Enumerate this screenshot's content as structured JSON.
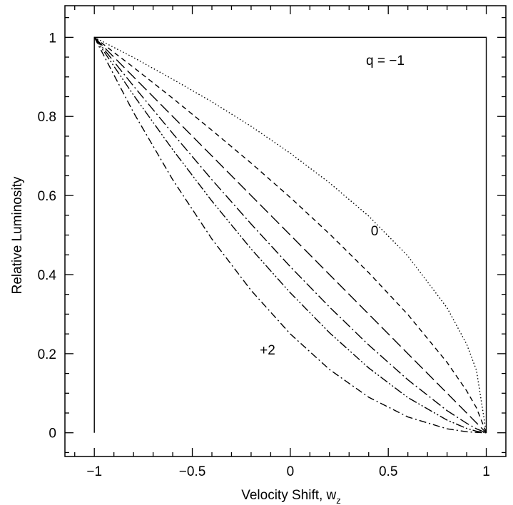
{
  "chart_data": {
    "type": "line",
    "xlabel": "Velocity Shift, w",
    "xlabel_sub": "z",
    "ylabel": "Relative Luminosity",
    "annotations": [
      "q = −1",
      "0",
      "+2"
    ],
    "xlim": [
      -1.15,
      1.1
    ],
    "ylim": [
      -0.06,
      1.08
    ],
    "xticks": [
      {
        "value": -1,
        "label": "−1"
      },
      {
        "value": -0.5,
        "label": "−0.5"
      },
      0,
      0.5,
      1
    ],
    "yticks": [
      0,
      0.2,
      0.4,
      0.6,
      0.8,
      1
    ],
    "xminorticks": [
      -1.1,
      -0.9,
      -0.8,
      -0.7,
      -0.6,
      -0.4,
      -0.3,
      -0.2,
      -0.1,
      0.1,
      0.2,
      0.3,
      0.4,
      0.6,
      0.7,
      0.8,
      0.9
    ],
    "yminorticks": [
      -0.05,
      0.05,
      0.1,
      0.15,
      0.25,
      0.3,
      0.35,
      0.45,
      0.5,
      0.55,
      0.65,
      0.7,
      0.75,
      0.85,
      0.9,
      0.95,
      1.05
    ],
    "series": [
      {
        "color": "#000000",
        "dash": "none",
        "x": [
          -1,
          -1,
          1,
          1
        ],
        "values": [
          0,
          1,
          1,
          0
        ]
      },
      {
        "color": "#000000",
        "dash": "1.5 3",
        "x": [
          -1,
          -0.8,
          -0.6,
          -0.4,
          -0.2,
          0,
          0.2,
          0.4,
          0.6,
          0.8,
          0.9,
          0.95,
          1
        ],
        "values": [
          1,
          0.949,
          0.894,
          0.837,
          0.775,
          0.707,
          0.632,
          0.548,
          0.447,
          0.316,
          0.224,
          0.158,
          0
        ]
      },
      {
        "color": "#000000",
        "dash": "7 5",
        "x": [
          -1,
          -0.8,
          -0.6,
          -0.4,
          -0.2,
          0,
          0.2,
          0.4,
          0.6,
          0.8,
          0.9,
          0.95,
          1
        ],
        "values": [
          1,
          0.924,
          0.846,
          0.765,
          0.682,
          0.595,
          0.503,
          0.405,
          0.299,
          0.178,
          0.106,
          0.063,
          0
        ]
      },
      {
        "color": "#000000",
        "dash": "16 6",
        "x": [
          -1,
          -0.8,
          -0.6,
          -0.4,
          -0.2,
          0,
          0.2,
          0.4,
          0.6,
          0.8,
          0.9,
          0.95,
          1
        ],
        "values": [
          1,
          0.9,
          0.8,
          0.7,
          0.6,
          0.5,
          0.4,
          0.3,
          0.2,
          0.1,
          0.05,
          0.025,
          0
        ]
      },
      {
        "color": "#000000",
        "dash": "14 4 2 4",
        "x": [
          -1,
          -0.8,
          -0.6,
          -0.4,
          -0.2,
          0,
          0.2,
          0.4,
          0.6,
          0.8,
          0.9,
          0.95,
          1
        ],
        "values": [
          1,
          0.877,
          0.757,
          0.64,
          0.528,
          0.42,
          0.318,
          0.222,
          0.134,
          0.056,
          0.024,
          0.01,
          0
        ]
      },
      {
        "color": "#000000",
        "dash": "12 3 2 3 2 3",
        "x": [
          -1,
          -0.8,
          -0.6,
          -0.4,
          -0.2,
          0,
          0.2,
          0.4,
          0.6,
          0.8,
          0.9,
          0.95,
          1
        ],
        "values": [
          1,
          0.854,
          0.716,
          0.586,
          0.465,
          0.354,
          0.253,
          0.164,
          0.089,
          0.032,
          0.011,
          0.004,
          0
        ]
      },
      {
        "color": "#000000",
        "dash": "10 4 2 4",
        "x": [
          -1,
          -0.8,
          -0.6,
          -0.4,
          -0.2,
          0,
          0.2,
          0.4,
          0.6,
          0.8,
          0.9,
          0.95,
          1
        ],
        "values": [
          1,
          0.81,
          0.64,
          0.49,
          0.36,
          0.25,
          0.16,
          0.09,
          0.04,
          0.01,
          0.0025,
          0.001,
          0
        ]
      }
    ]
  }
}
